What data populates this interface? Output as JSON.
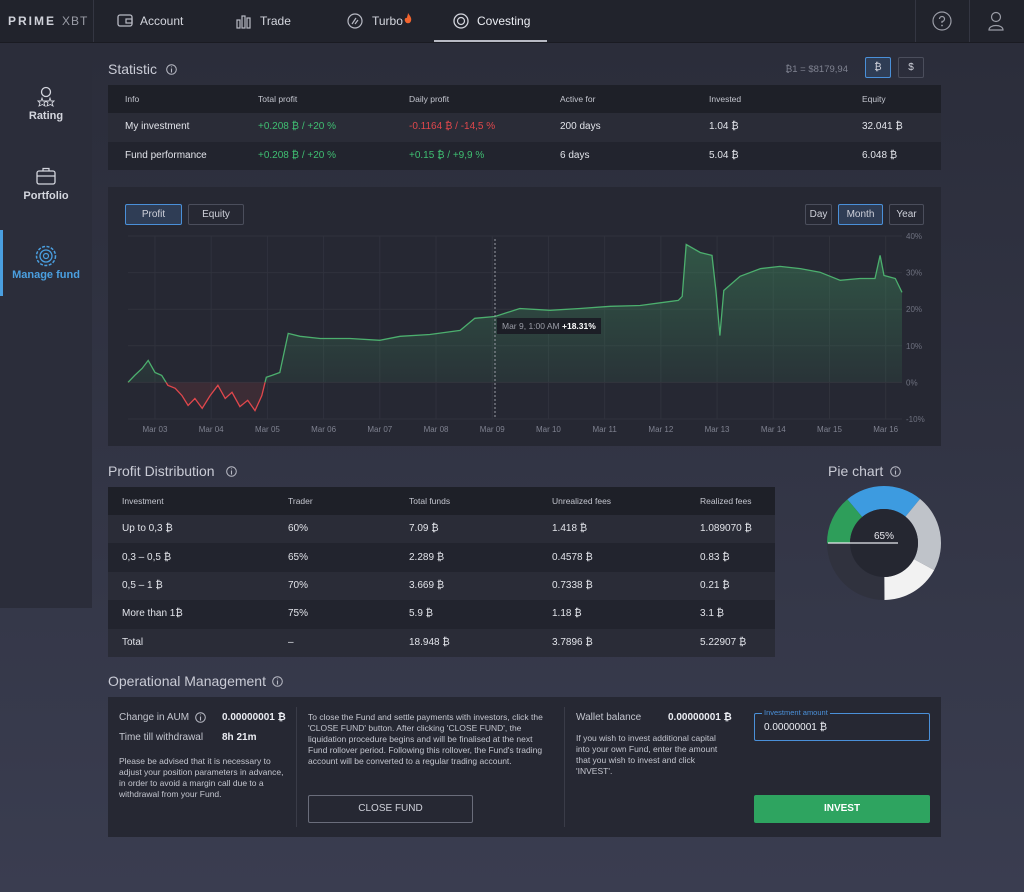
{
  "nav": {
    "logo": "PRIME",
    "logo_suffix": "XBT",
    "tabs": [
      "Account",
      "Trade",
      "Turbo",
      "Covesting"
    ]
  },
  "sidebar": {
    "items": [
      "Rating",
      "Portfolio",
      "Manage fund"
    ]
  },
  "statistic": {
    "title": "Statistic",
    "rate": "₿1 = $8179,94",
    "currencies": [
      "₿",
      "$"
    ],
    "table": {
      "header": [
        "Info",
        "Total profit",
        "Daily profit",
        "Active for",
        "Invested",
        "Equity"
      ],
      "rows": [
        [
          "My investment",
          "+0.208 ₿ / +20 %",
          "-0.1164 ₿ / -14,5 %",
          "200 days",
          "1.04 ₿",
          "32.041 ₿"
        ],
        [
          "Fund performance",
          "+0.208 ₿ / +20 %",
          "+0.15 ₿ / +9,9 %",
          "6 days",
          "5.04 ₿",
          "6.048 ₿"
        ]
      ]
    }
  },
  "profit_chart": {
    "type": "line",
    "tabs": [
      "Profit",
      "Equity"
    ],
    "periods": [
      "Day",
      "Month",
      "Year"
    ],
    "color": "#4caf6e",
    "negative_color": "#e0474c",
    "grid": true,
    "x": [
      2.52,
      2.64,
      2.77,
      2.88,
      3.0,
      3.12,
      3.23,
      3.36,
      3.48,
      3.59,
      3.71,
      3.84,
      3.98,
      4.12,
      4.25,
      4.37,
      4.51,
      4.65,
      4.78,
      4.9,
      4.98,
      5.08,
      5.22,
      5.37,
      5.58,
      5.94,
      6.47,
      7.0,
      7.36,
      7.89,
      8.43,
      8.69,
      9.05,
      9.49,
      10.03,
      10.56,
      11.1,
      11.63,
      12.07,
      12.31,
      12.38,
      12.45,
      12.7,
      12.91,
      12.98,
      13.05,
      13.12,
      13.41,
      13.77,
      14.12,
      14.48,
      14.83,
      15.19,
      15.54,
      15.81,
      15.9,
      15.97,
      16.17,
      16.29
    ],
    "values": [
      0,
      1.9,
      3.8,
      6.0,
      2.7,
      1.9,
      -0.8,
      -1.6,
      -3.6,
      -6.3,
      -4.4,
      -7.1,
      -3.6,
      -0.8,
      -4.4,
      -2.7,
      -6.6,
      -4.9,
      -7.7,
      -3.6,
      1.4,
      1.9,
      2.7,
      13.4,
      12.6,
      12.0,
      12.0,
      11.5,
      12.6,
      13.1,
      14.2,
      17.5,
      18.0,
      20.2,
      19.7,
      20.2,
      20.8,
      21.0,
      21.9,
      22.4,
      23.5,
      37.7,
      35.5,
      34.7,
      25.1,
      12.8,
      25.1,
      29.0,
      31.1,
      31.7,
      31.1,
      30.1,
      27.9,
      28.4,
      28.4,
      34.7,
      29.2,
      28.4,
      24.6
    ],
    "xlim": [
      2.52,
      16.29
    ],
    "xticks": [
      {
        "value": 3,
        "label": "Mar 03"
      },
      {
        "value": 4,
        "label": "Mar 04"
      },
      {
        "value": 5,
        "label": "Mar 05"
      },
      {
        "value": 6,
        "label": "Mar 06"
      },
      {
        "value": 7,
        "label": "Mar 07"
      },
      {
        "value": 8,
        "label": "Mar 08"
      },
      {
        "value": 9,
        "label": "Mar 09"
      },
      {
        "value": 10,
        "label": "Mar 10"
      },
      {
        "value": 11,
        "label": "Mar 11"
      },
      {
        "value": 12,
        "label": "Mar 12"
      },
      {
        "value": 13,
        "label": "Mar 13"
      },
      {
        "value": 14,
        "label": "Mar 14"
      },
      {
        "value": 15,
        "label": "Mar 15"
      },
      {
        "value": 16,
        "label": "Mar 16"
      }
    ],
    "ylim": [
      -10,
      40
    ],
    "yticks": [
      {
        "value": -10,
        "label": "-10%"
      },
      {
        "value": 0,
        "label": "0%"
      },
      {
        "value": 10,
        "label": "10%"
      },
      {
        "value": 20,
        "label": "20%"
      },
      {
        "value": 30,
        "label": "30%"
      },
      {
        "value": 40,
        "label": "40%"
      }
    ],
    "tooltip": {
      "date": "Mar 9, 1:00 AM",
      "value": "+18.31%"
    }
  },
  "profit_distribution": {
    "title": "Profit Distribution",
    "table": {
      "header": [
        "Investment",
        "Trader",
        "Total funds",
        "Unrealized fees",
        "Realized fees"
      ],
      "rows": [
        [
          "Up to 0,3 ₿",
          "60%",
          "7.09 ₿",
          "1.418 ₿",
          "1.089070 ₿"
        ],
        [
          "0,3 – 0,5 ₿",
          "65%",
          "2.289 ₿",
          "0.4578 ₿",
          "0.83 ₿"
        ],
        [
          "0,5 – 1 ₿",
          "70%",
          "3.669 ₿",
          "0.7338 ₿",
          "0.21 ₿"
        ],
        [
          "More than 1₿",
          "75%",
          "5.9 ₿",
          "1.18 ₿",
          "3.1 ₿"
        ],
        [
          "Total",
          "–",
          "18.948 ₿",
          "3.7896 ₿",
          "5.22907 ₿"
        ]
      ]
    }
  },
  "pie_chart": {
    "type": "pie",
    "title": "Pie chart",
    "values": [
      22,
      22,
      17,
      25,
      14
    ],
    "colors": [
      "#3d9be0",
      "#bfc3c9",
      "#f2f2f2",
      "#30323e",
      "#2e9e5a"
    ],
    "center_label": "65%"
  },
  "operational": {
    "title": "Operational Management",
    "change_label": "Change in AUM",
    "change_value": "0.00000001 ₿",
    "time_label": "Time till withdrawal",
    "time_value": "8h 21m",
    "advice": "Please be advised that it is necessary to adjust your position parameters in advance, in order to avoid a margin call due to a withdrawal from your Fund.",
    "close_text": "To close the Fund and settle payments with investors, click the 'CLOSE FUND' button. After clicking 'CLOSE FUND', the liquidation procedure begins and will be finalised at the next Fund rollover period. Following this rollover, the Fund's trading account will be converted to a regular trading account.",
    "close_button": "CLOSE FUND",
    "wallet_label": "Wallet balance",
    "wallet_value": "0.00000001 ₿",
    "invest_text": "If you wish to invest additional capital into your own Fund, enter the amount that you wish to invest and click 'INVEST'.",
    "amount_label": "Investment amount",
    "amount_value": "0.00000001 ₿",
    "invest_button": "INVEST"
  }
}
